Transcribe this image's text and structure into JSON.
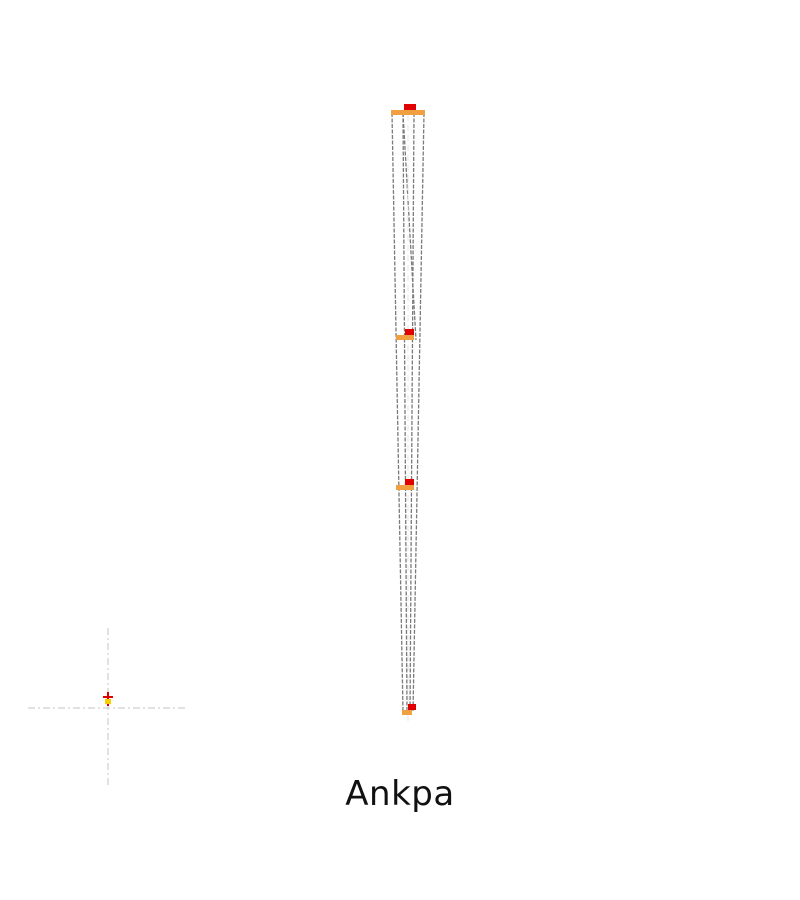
{
  "caption": "Ankpa",
  "colors": {
    "outline": "#7a7a7a",
    "guide": "#cfcfcf",
    "accent_orange": "#f0a040",
    "accent_red": "#e00000",
    "accent_yellow": "#f5d000",
    "background": "#ffffff"
  }
}
